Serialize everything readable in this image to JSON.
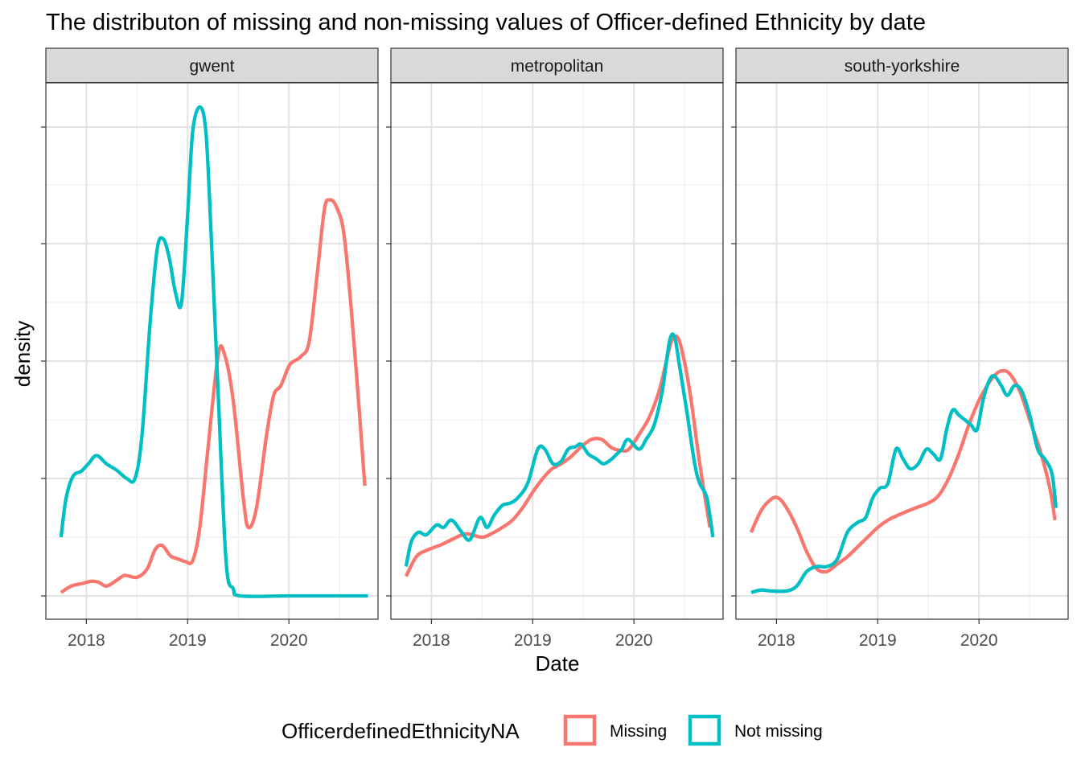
{
  "chart_data": {
    "type": "line",
    "title": "The distributon of missing and non-missing values of Officer-defined Ethnicity by date",
    "xlabel": "Date",
    "ylabel": "density",
    "x_ticks": [
      "2018",
      "2019",
      "2020"
    ],
    "x_tick_values": [
      2018.0,
      2019.0,
      2020.0
    ],
    "xlim": [
      2017.6,
      2020.88
    ],
    "ylim": [
      0,
      1
    ],
    "y_tick_labels_shown": false,
    "grid": true,
    "legend": {
      "title": "OfficerdefinedEthnicityNA",
      "position": "bottom",
      "entries": [
        {
          "name": "Missing",
          "color": "#F8766D"
        },
        {
          "name": "Not missing",
          "color": "#00BFC4"
        }
      ]
    },
    "colors": {
      "Missing": "#F8766D",
      "Not missing": "#00BFC4"
    },
    "panels": [
      {
        "name": "gwent",
        "series": [
          {
            "name": "Missing",
            "x": [
              2017.75,
              2017.85,
              2017.95,
              2018.05,
              2018.12,
              2018.2,
              2018.3,
              2018.38,
              2018.5,
              2018.6,
              2018.68,
              2018.75,
              2018.83,
              2018.9,
              2018.98,
              2019.05,
              2019.12,
              2019.2,
              2019.3,
              2019.36,
              2019.45,
              2019.55,
              2019.6,
              2019.68,
              2019.78,
              2019.85,
              2019.92,
              2020.0,
              2020.05,
              2020.12,
              2020.2,
              2020.28,
              2020.35,
              2020.4,
              2020.47,
              2020.55,
              2020.65,
              2020.75
            ],
            "y": [
              0.007,
              0.02,
              0.025,
              0.03,
              0.028,
              0.02,
              0.032,
              0.042,
              0.038,
              0.055,
              0.095,
              0.103,
              0.082,
              0.076,
              0.07,
              0.072,
              0.14,
              0.3,
              0.49,
              0.497,
              0.4,
              0.2,
              0.14,
              0.18,
              0.33,
              0.41,
              0.43,
              0.47,
              0.48,
              0.49,
              0.52,
              0.66,
              0.79,
              0.81,
              0.795,
              0.73,
              0.5,
              0.225
            ]
          },
          {
            "name": "Not missing",
            "x": [
              2017.75,
              2017.8,
              2017.87,
              2017.95,
              2018.02,
              2018.1,
              2018.2,
              2018.3,
              2018.4,
              2018.48,
              2018.55,
              2018.63,
              2018.7,
              2018.76,
              2018.82,
              2018.88,
              2018.94,
              2019.0,
              2019.05,
              2019.12,
              2019.18,
              2019.23,
              2019.3,
              2019.38,
              2019.45,
              2019.52,
              2020.0,
              2020.5,
              2020.78
            ],
            "y": [
              0.12,
              0.2,
              0.245,
              0.255,
              0.27,
              0.287,
              0.27,
              0.257,
              0.24,
              0.24,
              0.33,
              0.56,
              0.71,
              0.73,
              0.69,
              0.62,
              0.6,
              0.78,
              0.95,
              1.0,
              0.95,
              0.75,
              0.42,
              0.07,
              0.015,
              0.0,
              0.0,
              0.0,
              0.0
            ]
          }
        ]
      },
      {
        "name": "metropolitan",
        "series": [
          {
            "name": "Missing",
            "x": [
              2017.75,
              2017.85,
              2017.95,
              2018.1,
              2018.25,
              2018.35,
              2018.5,
              2018.6,
              2018.7,
              2018.8,
              2018.9,
              2019.0,
              2019.08,
              2019.18,
              2019.28,
              2019.38,
              2019.48,
              2019.58,
              2019.68,
              2019.78,
              2019.88,
              2019.95,
              2020.05,
              2020.15,
              2020.25,
              2020.32,
              2020.38,
              2020.45,
              2020.55,
              2020.65,
              2020.75
            ],
            "y": [
              0.04,
              0.08,
              0.093,
              0.105,
              0.12,
              0.127,
              0.12,
              0.128,
              0.14,
              0.155,
              0.18,
              0.212,
              0.235,
              0.258,
              0.27,
              0.285,
              0.305,
              0.32,
              0.32,
              0.303,
              0.297,
              0.3,
              0.33,
              0.365,
              0.42,
              0.48,
              0.525,
              0.52,
              0.42,
              0.27,
              0.14
            ]
          },
          {
            "name": "Not missing",
            "x": [
              2017.75,
              2017.8,
              2017.87,
              2017.95,
              2018.05,
              2018.12,
              2018.2,
              2018.3,
              2018.38,
              2018.48,
              2018.55,
              2018.62,
              2018.7,
              2018.78,
              2018.85,
              2018.95,
              2019.05,
              2019.12,
              2019.2,
              2019.28,
              2019.35,
              2019.42,
              2019.48,
              2019.55,
              2019.63,
              2019.7,
              2019.78,
              2019.83,
              2019.88,
              2019.94,
              2020.05,
              2020.12,
              2020.2,
              2020.28,
              2020.35,
              2020.4,
              2020.45,
              2020.52,
              2020.6,
              2020.65,
              2020.72,
              2020.78
            ],
            "y": [
              0.06,
              0.11,
              0.13,
              0.125,
              0.145,
              0.14,
              0.155,
              0.13,
              0.115,
              0.16,
              0.14,
              0.165,
              0.185,
              0.19,
              0.2,
              0.23,
              0.3,
              0.3,
              0.27,
              0.275,
              0.3,
              0.305,
              0.31,
              0.29,
              0.28,
              0.27,
              0.28,
              0.29,
              0.3,
              0.32,
              0.3,
              0.32,
              0.35,
              0.42,
              0.52,
              0.53,
              0.47,
              0.38,
              0.27,
              0.23,
              0.2,
              0.12
            ]
          }
        ]
      },
      {
        "name": "south-yorkshire",
        "series": [
          {
            "name": "Missing",
            "x": [
              2017.75,
              2017.85,
              2017.95,
              2018.02,
              2018.1,
              2018.2,
              2018.3,
              2018.4,
              2018.5,
              2018.6,
              2018.7,
              2018.8,
              2018.9,
              2019.0,
              2019.1,
              2019.2,
              2019.35,
              2019.5,
              2019.6,
              2019.7,
              2019.8,
              2019.9,
              2020.0,
              2020.08,
              2020.15,
              2020.22,
              2020.3,
              2020.4,
              2020.5,
              2020.6,
              2020.7,
              2020.75
            ],
            "y": [
              0.13,
              0.175,
              0.198,
              0.2,
              0.18,
              0.14,
              0.09,
              0.055,
              0.05,
              0.065,
              0.08,
              0.1,
              0.12,
              0.14,
              0.155,
              0.165,
              0.178,
              0.19,
              0.205,
              0.24,
              0.29,
              0.35,
              0.4,
              0.43,
              0.45,
              0.46,
              0.455,
              0.42,
              0.36,
              0.3,
              0.22,
              0.155
            ]
          },
          {
            "name": "Not missing",
            "x": [
              2017.75,
              2017.85,
              2017.95,
              2018.1,
              2018.2,
              2018.3,
              2018.4,
              2018.5,
              2018.6,
              2018.7,
              2018.8,
              2018.88,
              2018.95,
              2019.02,
              2019.1,
              2019.18,
              2019.25,
              2019.32,
              2019.4,
              2019.48,
              2019.55,
              2019.62,
              2019.68,
              2019.74,
              2019.8,
              2019.86,
              2019.92,
              2019.98,
              2020.04,
              2020.1,
              2020.15,
              2020.22,
              2020.28,
              2020.35,
              2020.42,
              2020.5,
              2020.58,
              2020.65,
              2020.72,
              2020.76
            ],
            "y": [
              0.007,
              0.012,
              0.01,
              0.01,
              0.02,
              0.05,
              0.06,
              0.06,
              0.075,
              0.13,
              0.15,
              0.16,
              0.2,
              0.22,
              0.23,
              0.3,
              0.28,
              0.26,
              0.27,
              0.3,
              0.29,
              0.28,
              0.34,
              0.38,
              0.37,
              0.36,
              0.35,
              0.34,
              0.4,
              0.44,
              0.45,
              0.43,
              0.41,
              0.43,
              0.42,
              0.37,
              0.3,
              0.28,
              0.25,
              0.18
            ]
          }
        ]
      }
    ]
  }
}
